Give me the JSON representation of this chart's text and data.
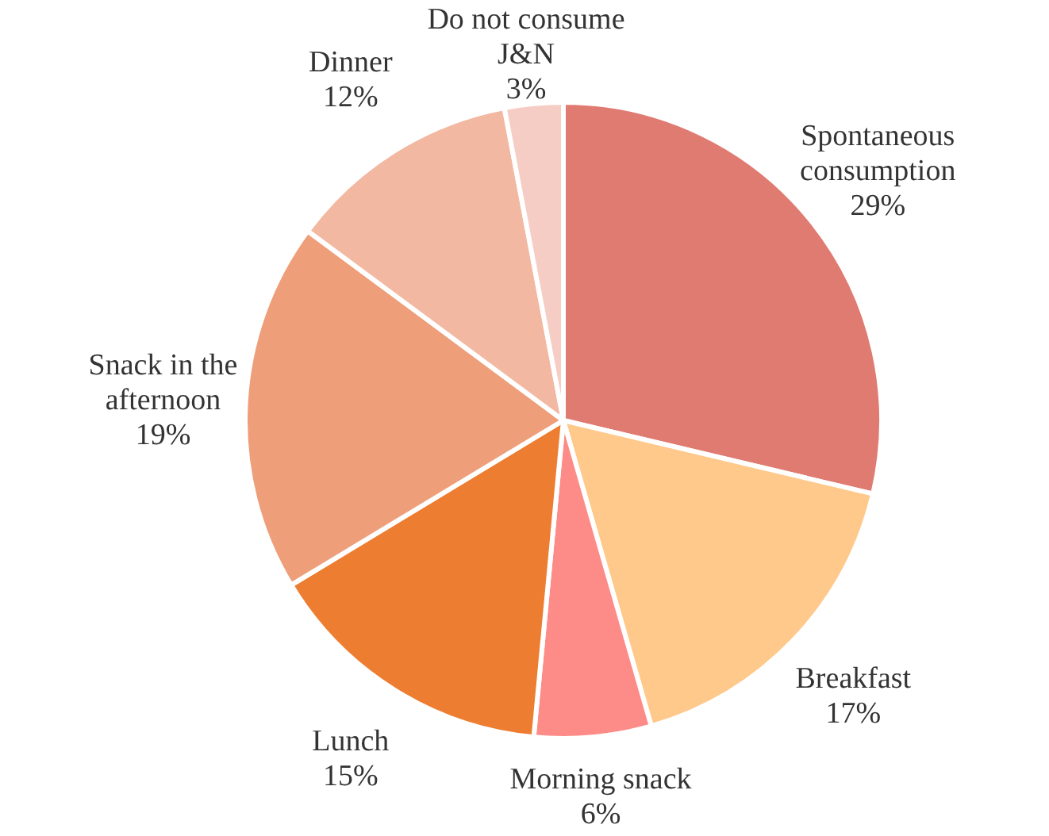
{
  "chart_data": {
    "type": "pie",
    "categories": [
      "Spontaneous consumption",
      "Breakfast",
      "Morning snack",
      "Lunch",
      "Snack in the afternoon",
      "Dinner",
      "Do not consume J&N"
    ],
    "values": [
      29,
      17,
      6,
      15,
      19,
      12,
      3
    ],
    "value_labels": [
      "29%",
      "17%",
      "6%",
      "15%",
      "19%",
      "12%",
      "3%"
    ],
    "colors": [
      "#e07b72",
      "#fec98b",
      "#fd8b87",
      "#ed7d31",
      "#ee9f7a",
      "#f2b8a2",
      "#f5cdc4"
    ],
    "legend": false
  }
}
